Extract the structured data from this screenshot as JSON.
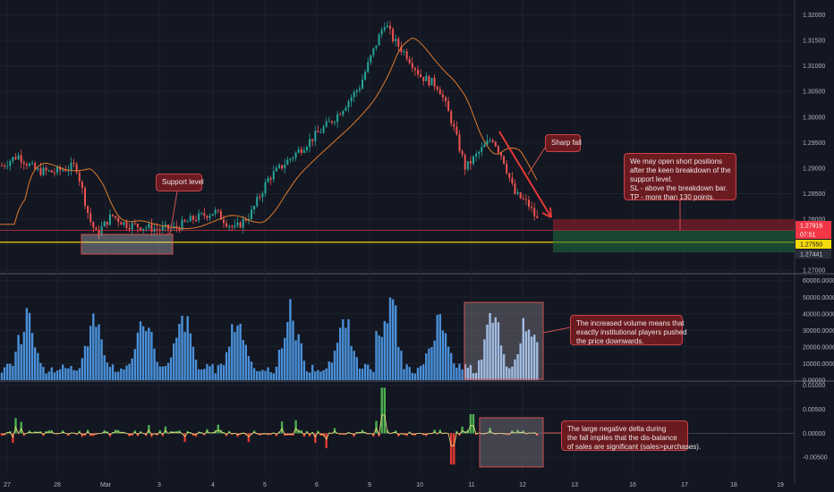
{
  "chart_data": [
    {
      "type": "candlestick",
      "panel": "price",
      "y_ticks": [
        "1.32000",
        "1.31500",
        "1.31000",
        "1.30500",
        "1.30000",
        "1.29500",
        "1.29000",
        "1.28500",
        "1.28000",
        "1.27500",
        "1.27000"
      ],
      "ylim": [
        1.2695,
        1.3215
      ],
      "moving_average_color": "#e07a2c",
      "support_line": 1.2755,
      "price_tags": [
        {
          "text": "1.27916",
          "value": 1.27916,
          "bg": "#f23645",
          "fg": "#ffffff"
        },
        {
          "text": "07:51",
          "value": 1.2778,
          "bg": "#f23645",
          "fg": "#ffffff"
        },
        {
          "text": "1.27550",
          "value": 1.2755,
          "bg": "#f5d90a",
          "fg": "#131722"
        },
        {
          "text": "1.27441",
          "value": 1.27441,
          "bg": "#2a2e39",
          "fg": "#d1d4dc"
        }
      ],
      "short_position": {
        "entry": 1.2778,
        "stop_loss": 1.28,
        "take_profit": 1.2735
      }
    },
    {
      "type": "bar",
      "panel": "volume",
      "y_ticks": [
        "60000.00000",
        "50000.00000",
        "40000.00000",
        "30000.00000",
        "20000.00000",
        "10000.00000",
        "0.00000"
      ],
      "ylim": [
        0,
        62000
      ],
      "bar_color": "#4a90d9",
      "highlight_color": "#90b8e8"
    },
    {
      "type": "line",
      "panel": "delta",
      "y_ticks": [
        "0.01000",
        "0.00500",
        "0.00000",
        "-0.00500"
      ],
      "ylim": [
        -0.0085,
        0.0105
      ],
      "positive_color": "#4caf50",
      "negative_color": "#e53935"
    }
  ],
  "x_axis_labels": [
    "27",
    "28",
    "Mar",
    "3",
    "4",
    "5",
    "6",
    "9",
    "10",
    "11",
    "12",
    "13",
    "16",
    "17",
    "18",
    "19"
  ],
  "annotations": {
    "support_level": "Support level",
    "sharp_fall": "Sharp fall",
    "short_note": [
      "We may open short positions",
      "after the keen breakdown of the",
      "support level.",
      "SL - above the breakdown bar.",
      "TP - more than 130 points."
    ],
    "volume_note": [
      "The increased volume means that",
      "exactly institutional players pushed",
      "the price downwards."
    ],
    "delta_note": [
      "The large negative delta during",
      "the fall implies that the dis-balance",
      "of sales are significant (sales>purchases)."
    ]
  }
}
